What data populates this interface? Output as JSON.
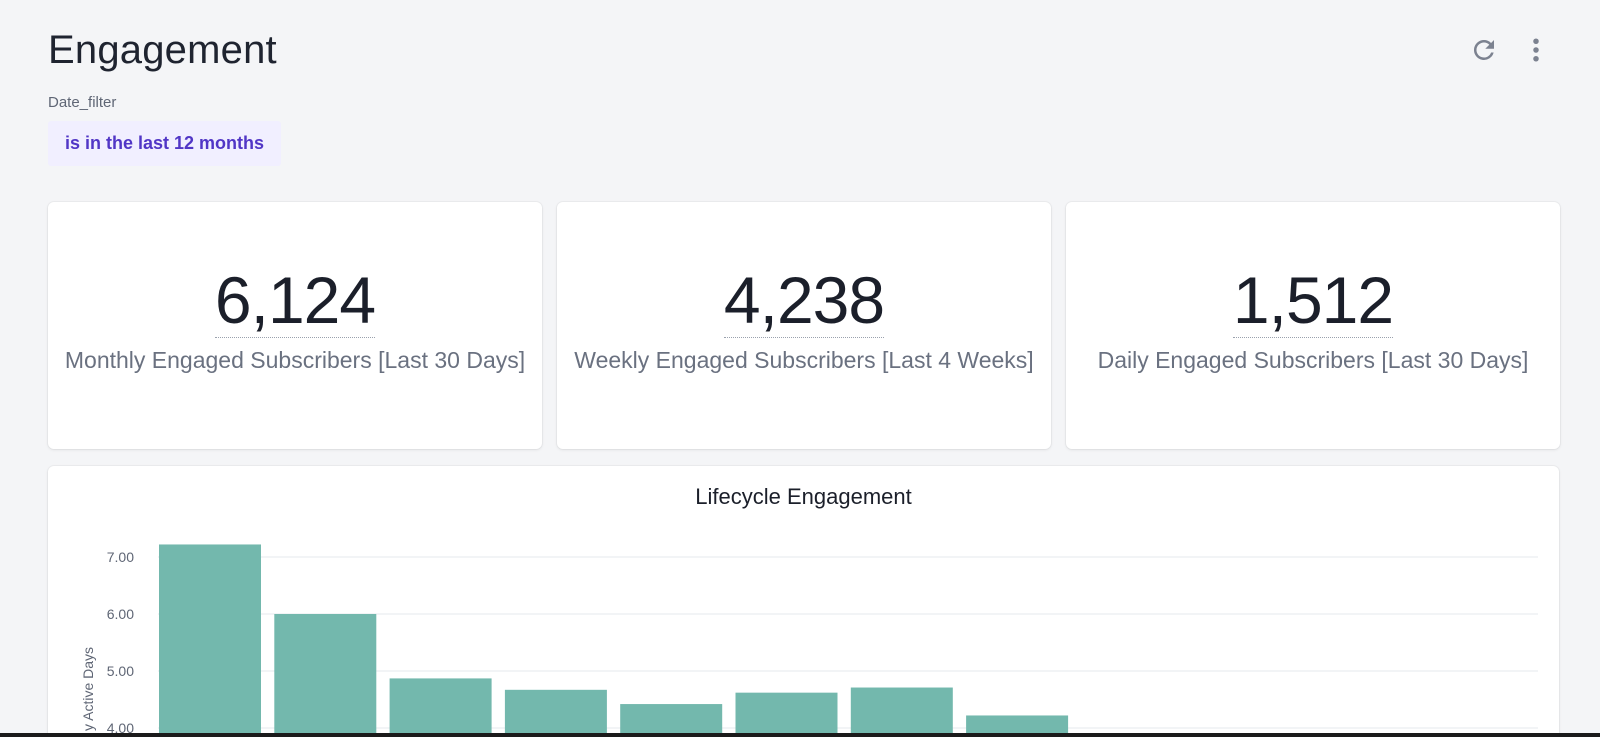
{
  "header": {
    "title": "Engagement",
    "refresh_icon": "refresh-icon",
    "more_icon": "more-vertical-icon"
  },
  "filter": {
    "label": "Date_filter",
    "value": "is in the last 12 months"
  },
  "kpis": [
    {
      "value": "6,124",
      "label": "Monthly Engaged Subscribers [Last 30 Days]"
    },
    {
      "value": "4,238",
      "label": "Weekly Engaged Subscribers [Last 4 Weeks]"
    },
    {
      "value": "1,512",
      "label": "Daily Engaged Subscribers [Last 30 Days]"
    }
  ],
  "colors": {
    "accent": "#5136c6",
    "chip_bg": "#f1efff",
    "bar": "#73b8ad"
  },
  "chart_data": {
    "type": "bar",
    "title": "Lifecycle Engagement",
    "xlabel": "",
    "ylabel": "y Active Days",
    "categories": [
      "",
      "",
      "",
      "",
      "",
      "",
      "",
      ""
    ],
    "values": [
      7.22,
      6.0,
      4.87,
      4.67,
      4.42,
      4.62,
      4.71,
      4.22
    ],
    "ylim": [
      4.0,
      7.2
    ],
    "yticks": [
      "7.00",
      "6.00",
      "5.00",
      "4.00"
    ],
    "ytick_values": [
      7,
      6,
      5,
      4
    ],
    "grid": true
  }
}
